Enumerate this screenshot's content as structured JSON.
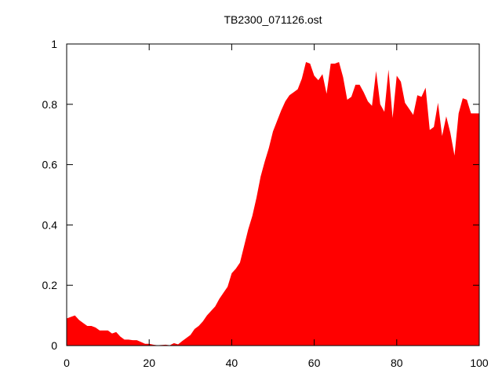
{
  "chart_data": {
    "type": "area",
    "title": "TB2300_071126.ost",
    "xlabel": "",
    "ylabel": "",
    "xlim": [
      0,
      100
    ],
    "ylim": [
      0,
      1
    ],
    "xticks": [
      0,
      20,
      40,
      60,
      80,
      100
    ],
    "yticks": [
      0,
      0.2,
      0.4,
      0.6,
      0.8,
      1
    ],
    "ytick_labels": [
      "0",
      "0.2",
      "0.4",
      "0.6",
      "0.8",
      "1"
    ],
    "grid": false,
    "legend": "none",
    "series": [
      {
        "fill_color": "#ff0000",
        "x": [
          0,
          1,
          2,
          3,
          4,
          5,
          6,
          7,
          8,
          9,
          10,
          11,
          12,
          13,
          14,
          15,
          16,
          17,
          18,
          19,
          20,
          21,
          22,
          23,
          24,
          25,
          26,
          27,
          28,
          29,
          30,
          31,
          32,
          33,
          34,
          35,
          36,
          37,
          38,
          39,
          40,
          41,
          42,
          43,
          44,
          45,
          46,
          47,
          48,
          49,
          50,
          51,
          52,
          53,
          54,
          55,
          56,
          57,
          58,
          59,
          60,
          61,
          62,
          63,
          64,
          65,
          66,
          67,
          68,
          69,
          70,
          71,
          72,
          73,
          74,
          75,
          76,
          77,
          78,
          79,
          80,
          81,
          82,
          83,
          84,
          85,
          86,
          87,
          88,
          89,
          90,
          91,
          92,
          93,
          94,
          95,
          96,
          97,
          98,
          99,
          100
        ],
        "y": [
          0.09,
          0.095,
          0.1,
          0.085,
          0.075,
          0.065,
          0.065,
          0.06,
          0.05,
          0.05,
          0.05,
          0.04,
          0.045,
          0.03,
          0.02,
          0.02,
          0.018,
          0.018,
          0.012,
          0.006,
          0.006,
          0.003,
          0.001,
          0.002,
          0.003,
          0.001,
          0.008,
          0.004,
          0.015,
          0.025,
          0.035,
          0.055,
          0.065,
          0.08,
          0.1,
          0.115,
          0.13,
          0.155,
          0.175,
          0.195,
          0.24,
          0.255,
          0.275,
          0.33,
          0.385,
          0.43,
          0.49,
          0.56,
          0.61,
          0.655,
          0.71,
          0.745,
          0.78,
          0.81,
          0.83,
          0.84,
          0.85,
          0.885,
          0.94,
          0.935,
          0.895,
          0.88,
          0.9,
          0.835,
          0.935,
          0.935,
          0.94,
          0.89,
          0.815,
          0.825,
          0.865,
          0.865,
          0.84,
          0.81,
          0.795,
          0.91,
          0.8,
          0.775,
          0.915,
          0.755,
          0.895,
          0.875,
          0.805,
          0.785,
          0.765,
          0.83,
          0.825,
          0.855,
          0.715,
          0.725,
          0.805,
          0.695,
          0.76,
          0.705,
          0.63,
          0.77,
          0.82,
          0.815,
          0.77,
          0.77,
          0.77
        ]
      }
    ]
  }
}
